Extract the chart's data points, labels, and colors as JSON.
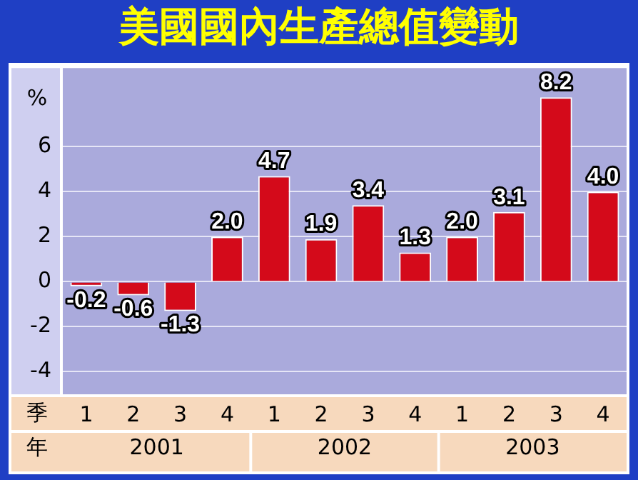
{
  "chart_data": {
    "type": "bar",
    "title": "美國國內生產總值變動",
    "ylabel": "%",
    "categories": [
      "1",
      "2",
      "3",
      "4",
      "1",
      "2",
      "3",
      "4",
      "1",
      "2",
      "3",
      "4"
    ],
    "values": [
      -0.2,
      -0.6,
      -1.3,
      2.0,
      4.7,
      1.9,
      3.4,
      1.3,
      2.0,
      3.1,
      8.2,
      4.0
    ],
    "value_labels": [
      "-0.2",
      "-0.6",
      "-1.3",
      "2.0",
      "4.7",
      "1.9",
      "3.4",
      "1.3",
      "2.0",
      "3.1",
      "8.2",
      "4.0"
    ],
    "color": "#d40a1a",
    "ylim": [
      -5,
      9.5
    ],
    "yticks": [
      -4,
      -2,
      0,
      2,
      4,
      6
    ],
    "grid": "y",
    "legend": false,
    "annotations": [
      "季",
      "年",
      "2001",
      "2002",
      "2003"
    ]
  }
}
